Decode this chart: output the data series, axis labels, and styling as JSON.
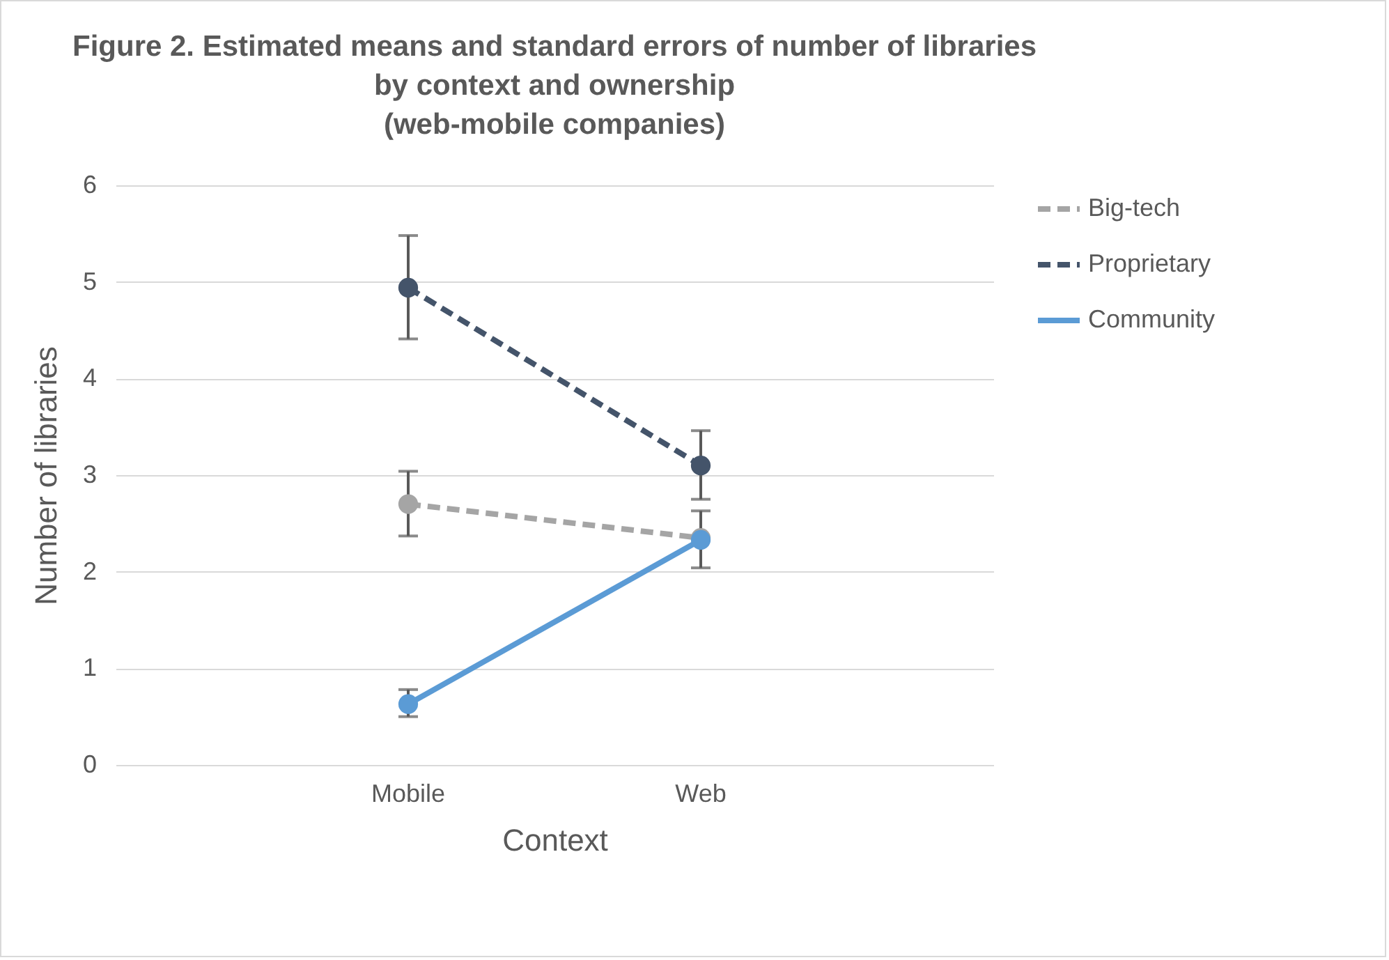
{
  "chart_data": {
    "type": "line",
    "title": "Figure 2. Estimated means and standard errors of number of libraries\nby context and ownership\n(web-mobile companies)",
    "xlabel": "Context",
    "ylabel": "Number of libraries",
    "categories": [
      "Mobile",
      "Web"
    ],
    "series": [
      {
        "name": "Big-tech",
        "color": "#a5a5a5",
        "line_style": "dashed",
        "values": [
          2.7,
          2.35
        ],
        "errors": [
          [
            2.37,
            3.04
          ],
          null
        ]
      },
      {
        "name": "Proprietary",
        "color": "#44546a",
        "line_style": "dashed",
        "values": [
          4.94,
          3.1
        ],
        "errors": [
          [
            4.41,
            5.48
          ],
          [
            2.75,
            3.46
          ]
        ]
      },
      {
        "name": "Community",
        "color": "#5b9bd5",
        "line_style": "solid",
        "values": [
          0.63,
          2.33
        ],
        "errors": [
          [
            0.5,
            0.78
          ],
          [
            2.04,
            2.63
          ]
        ]
      }
    ],
    "ylim": [
      0,
      6
    ],
    "yticks": [
      0,
      1,
      2,
      3,
      4,
      5,
      6
    ],
    "grid": "y",
    "legend": "right",
    "marker": "circle"
  }
}
